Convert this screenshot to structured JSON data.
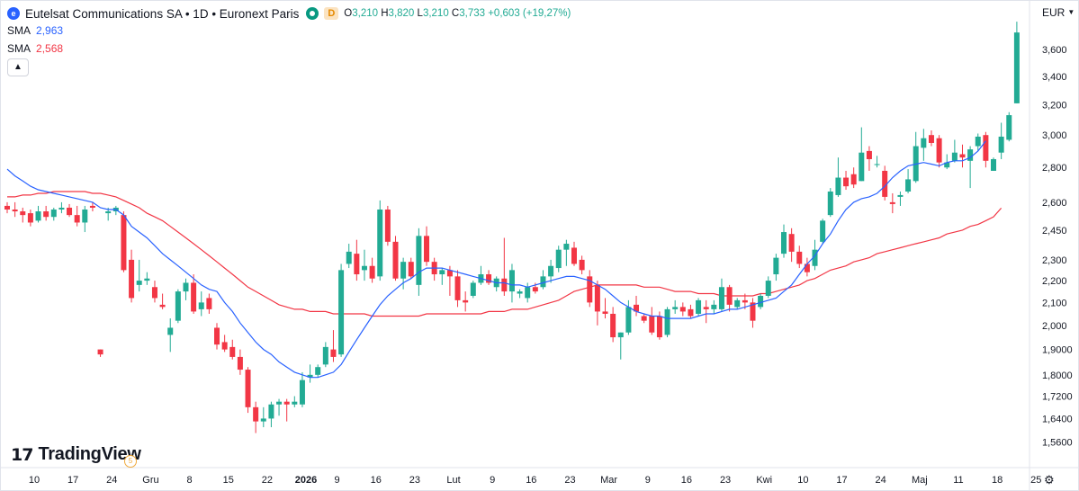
{
  "header": {
    "symbol_icon": "e",
    "title": "Eutelsat Communications SA • 1D • Euronext Paris",
    "market_status_icon": "market-open-dot-icon",
    "interval_badge": "D",
    "ohlc": {
      "o_label": "O",
      "o": "3,210",
      "h_label": "H",
      "h": "3,820",
      "l_label": "L",
      "l": "3,210",
      "c_label": "C",
      "c": "3,733",
      "change": "+0,603 (+19,27%)"
    }
  },
  "indicators": [
    {
      "label": "SMA",
      "value": "2,963",
      "color": "#2962ff"
    },
    {
      "label": "SMA",
      "value": "2,568",
      "color": "#f23645"
    }
  ],
  "collapse_icon": "chevron-up-icon",
  "currency": {
    "label": "EUR",
    "icon": "chevron-down-icon"
  },
  "settings_icon": "gear-icon",
  "logo": {
    "mark": "17",
    "text": "TradingView",
    "badge": "5"
  },
  "colors": {
    "up": "#22ab94",
    "down": "#f23645",
    "sma_fast": "#2962ff",
    "sma_slow": "#f23645"
  },
  "chart_data": {
    "type": "candlestick",
    "y_scale": "log",
    "ylim": [
      1.5,
      3.85
    ],
    "y_ticks": [
      "3,600",
      "3,400",
      "3,200",
      "3,000",
      "2,800",
      "2,600",
      "2,450",
      "2,300",
      "2,200",
      "2,100",
      "2,000",
      "1,9000",
      "1,8000",
      "1,7200",
      "1,6400",
      "1,5600"
    ],
    "y_tick_values": [
      3.6,
      3.4,
      3.2,
      3.0,
      2.8,
      2.6,
      2.45,
      2.3,
      2.2,
      2.1,
      2.0,
      1.9,
      1.8,
      1.72,
      1.64,
      1.56
    ],
    "x_ticks": [
      {
        "label": "10",
        "i": 0
      },
      {
        "label": "17",
        "i": 5
      },
      {
        "label": "24",
        "i": 10
      },
      {
        "label": "Gru",
        "i": 15
      },
      {
        "label": "8",
        "i": 20
      },
      {
        "label": "15",
        "i": 25
      },
      {
        "label": "22",
        "i": 30
      },
      {
        "label": "2026",
        "i": 35,
        "bold": true
      },
      {
        "label": "9",
        "i": 39
      },
      {
        "label": "16",
        "i": 44
      },
      {
        "label": "23",
        "i": 49
      },
      {
        "label": "Lut",
        "i": 54
      },
      {
        "label": "9",
        "i": 59
      },
      {
        "label": "16",
        "i": 64
      },
      {
        "label": "23",
        "i": 69
      },
      {
        "label": "Mar",
        "i": 74
      },
      {
        "label": "9",
        "i": 79
      },
      {
        "label": "16",
        "i": 84
      },
      {
        "label": "23",
        "i": 89
      },
      {
        "label": "Kwi",
        "i": 94
      },
      {
        "label": "10",
        "i": 99
      },
      {
        "label": "17",
        "i": 104
      },
      {
        "label": "24",
        "i": 109
      },
      {
        "label": "Maj",
        "i": 114
      },
      {
        "label": "11",
        "i": 119
      },
      {
        "label": "18",
        "i": 124
      },
      {
        "label": "25",
        "i": 129
      }
    ],
    "candles": [
      {
        "o": 2.58,
        "h": 2.6,
        "l": 2.54,
        "c": 2.56
      },
      {
        "o": 2.56,
        "h": 2.6,
        "l": 2.52,
        "c": 2.55
      },
      {
        "o": 2.55,
        "h": 2.57,
        "l": 2.49,
        "c": 2.53
      },
      {
        "o": 2.54,
        "h": 2.56,
        "l": 2.47,
        "c": 2.49
      },
      {
        "o": 2.5,
        "h": 2.58,
        "l": 2.49,
        "c": 2.55
      },
      {
        "o": 2.55,
        "h": 2.58,
        "l": 2.5,
        "c": 2.52
      },
      {
        "o": 2.52,
        "h": 2.57,
        "l": 2.5,
        "c": 2.56
      },
      {
        "o": 2.56,
        "h": 2.6,
        "l": 2.54,
        "c": 2.57
      },
      {
        "o": 2.57,
        "h": 2.59,
        "l": 2.52,
        "c": 2.53
      },
      {
        "o": 2.53,
        "h": 2.58,
        "l": 2.47,
        "c": 2.49
      },
      {
        "o": 2.49,
        "h": 2.58,
        "l": 2.44,
        "c": 2.56
      },
      {
        "o": 2.58,
        "h": 2.6,
        "l": 2.55,
        "c": 2.57
      },
      {
        "o": 1.9,
        "h": 1.9,
        "l": 1.87,
        "c": 1.88
      },
      {
        "o": 2.54,
        "h": 2.57,
        "l": 2.5,
        "c": 2.55
      },
      {
        "o": 2.55,
        "h": 2.58,
        "l": 2.53,
        "c": 2.57
      },
      {
        "o": 2.53,
        "h": 2.55,
        "l": 2.24,
        "c": 2.25
      },
      {
        "o": 2.3,
        "h": 2.35,
        "l": 2.1,
        "c": 2.12
      },
      {
        "o": 2.18,
        "h": 2.3,
        "l": 2.15,
        "c": 2.2
      },
      {
        "o": 2.2,
        "h": 2.24,
        "l": 2.18,
        "c": 2.21
      },
      {
        "o": 2.17,
        "h": 2.2,
        "l": 2.1,
        "c": 2.12
      },
      {
        "o": 2.09,
        "h": 2.14,
        "l": 2.07,
        "c": 2.08
      },
      {
        "o": 1.96,
        "h": 2.03,
        "l": 1.89,
        "c": 1.99
      },
      {
        "o": 2.02,
        "h": 2.16,
        "l": 2.01,
        "c": 2.15
      },
      {
        "o": 2.15,
        "h": 2.21,
        "l": 2.11,
        "c": 2.19
      },
      {
        "o": 2.19,
        "h": 2.23,
        "l": 2.05,
        "c": 2.06
      },
      {
        "o": 2.07,
        "h": 2.15,
        "l": 2.04,
        "c": 2.1
      },
      {
        "o": 2.12,
        "h": 2.14,
        "l": 2.05,
        "c": 2.07
      },
      {
        "o": 1.99,
        "h": 2.01,
        "l": 1.9,
        "c": 1.92
      },
      {
        "o": 1.93,
        "h": 1.96,
        "l": 1.89,
        "c": 1.9
      },
      {
        "o": 1.91,
        "h": 1.94,
        "l": 1.86,
        "c": 1.87
      },
      {
        "o": 1.87,
        "h": 1.9,
        "l": 1.8,
        "c": 1.82
      },
      {
        "o": 1.82,
        "h": 1.83,
        "l": 1.66,
        "c": 1.68
      },
      {
        "o": 1.68,
        "h": 1.7,
        "l": 1.59,
        "c": 1.63
      },
      {
        "o": 1.63,
        "h": 1.68,
        "l": 1.61,
        "c": 1.64
      },
      {
        "o": 1.64,
        "h": 1.7,
        "l": 1.61,
        "c": 1.69
      },
      {
        "o": 1.69,
        "h": 1.71,
        "l": 1.65,
        "c": 1.7
      },
      {
        "o": 1.7,
        "h": 1.71,
        "l": 1.63,
        "c": 1.69
      },
      {
        "o": 1.69,
        "h": 1.72,
        "l": 1.68,
        "c": 1.7
      },
      {
        "o": 1.69,
        "h": 1.81,
        "l": 1.68,
        "c": 1.78
      },
      {
        "o": 1.79,
        "h": 1.84,
        "l": 1.77,
        "c": 1.8
      },
      {
        "o": 1.8,
        "h": 1.84,
        "l": 1.79,
        "c": 1.83
      },
      {
        "o": 1.84,
        "h": 1.93,
        "l": 1.83,
        "c": 1.91
      },
      {
        "o": 1.9,
        "h": 1.98,
        "l": 1.85,
        "c": 1.87
      },
      {
        "o": 1.88,
        "h": 2.28,
        "l": 1.87,
        "c": 2.25
      },
      {
        "o": 2.28,
        "h": 2.38,
        "l": 2.26,
        "c": 2.34
      },
      {
        "o": 2.33,
        "h": 2.4,
        "l": 2.2,
        "c": 2.23
      },
      {
        "o": 2.25,
        "h": 2.35,
        "l": 2.2,
        "c": 2.27
      },
      {
        "o": 2.27,
        "h": 2.31,
        "l": 2.19,
        "c": 2.21
      },
      {
        "o": 2.22,
        "h": 2.61,
        "l": 2.2,
        "c": 2.56
      },
      {
        "o": 2.56,
        "h": 2.58,
        "l": 2.37,
        "c": 2.39
      },
      {
        "o": 2.39,
        "h": 2.42,
        "l": 2.2,
        "c": 2.21
      },
      {
        "o": 2.21,
        "h": 2.31,
        "l": 2.16,
        "c": 2.29
      },
      {
        "o": 2.29,
        "h": 2.31,
        "l": 2.21,
        "c": 2.22
      },
      {
        "o": 2.18,
        "h": 2.46,
        "l": 2.13,
        "c": 2.42
      },
      {
        "o": 2.42,
        "h": 2.47,
        "l": 2.27,
        "c": 2.29
      },
      {
        "o": 2.29,
        "h": 2.31,
        "l": 2.2,
        "c": 2.23
      },
      {
        "o": 2.23,
        "h": 2.26,
        "l": 2.18,
        "c": 2.25
      },
      {
        "o": 2.25,
        "h": 2.27,
        "l": 2.13,
        "c": 2.22
      },
      {
        "o": 2.22,
        "h": 2.25,
        "l": 2.08,
        "c": 2.11
      },
      {
        "o": 2.11,
        "h": 2.15,
        "l": 2.06,
        "c": 2.1
      },
      {
        "o": 2.13,
        "h": 2.2,
        "l": 2.12,
        "c": 2.19
      },
      {
        "o": 2.19,
        "h": 2.27,
        "l": 2.18,
        "c": 2.23
      },
      {
        "o": 2.23,
        "h": 2.25,
        "l": 2.18,
        "c": 2.19
      },
      {
        "o": 2.17,
        "h": 2.22,
        "l": 2.15,
        "c": 2.21
      },
      {
        "o": 2.21,
        "h": 2.41,
        "l": 2.13,
        "c": 2.15
      },
      {
        "o": 2.15,
        "h": 2.28,
        "l": 2.1,
        "c": 2.25
      },
      {
        "o": 2.14,
        "h": 2.16,
        "l": 2.12,
        "c": 2.15
      },
      {
        "o": 2.12,
        "h": 2.19,
        "l": 2.1,
        "c": 2.17
      },
      {
        "o": 2.17,
        "h": 2.19,
        "l": 2.14,
        "c": 2.15
      },
      {
        "o": 2.17,
        "h": 2.25,
        "l": 2.16,
        "c": 2.22
      },
      {
        "o": 2.22,
        "h": 2.3,
        "l": 2.19,
        "c": 2.27
      },
      {
        "o": 2.26,
        "h": 2.37,
        "l": 2.24,
        "c": 2.35
      },
      {
        "o": 2.35,
        "h": 2.4,
        "l": 2.27,
        "c": 2.38
      },
      {
        "o": 2.36,
        "h": 2.39,
        "l": 2.27,
        "c": 2.28
      },
      {
        "o": 2.3,
        "h": 2.32,
        "l": 2.23,
        "c": 2.25
      },
      {
        "o": 2.22,
        "h": 2.25,
        "l": 2.08,
        "c": 2.1
      },
      {
        "o": 2.18,
        "h": 2.2,
        "l": 2.0,
        "c": 2.06
      },
      {
        "o": 2.06,
        "h": 2.12,
        "l": 2.03,
        "c": 2.05
      },
      {
        "o": 2.05,
        "h": 2.08,
        "l": 1.93,
        "c": 1.95
      },
      {
        "o": 1.95,
        "h": 1.97,
        "l": 1.86,
        "c": 1.97
      },
      {
        "o": 1.97,
        "h": 2.11,
        "l": 1.96,
        "c": 2.08
      },
      {
        "o": 2.09,
        "h": 2.13,
        "l": 2.04,
        "c": 2.06
      },
      {
        "o": 2.04,
        "h": 2.05,
        "l": 2.01,
        "c": 2.02
      },
      {
        "o": 2.04,
        "h": 2.08,
        "l": 1.96,
        "c": 1.97
      },
      {
        "o": 2.04,
        "h": 2.06,
        "l": 1.94,
        "c": 1.95
      },
      {
        "o": 1.96,
        "h": 2.08,
        "l": 1.95,
        "c": 2.07
      },
      {
        "o": 2.07,
        "h": 2.11,
        "l": 2.05,
        "c": 2.08
      },
      {
        "o": 2.08,
        "h": 2.1,
        "l": 2.04,
        "c": 2.06
      },
      {
        "o": 2.07,
        "h": 2.09,
        "l": 2.03,
        "c": 2.04
      },
      {
        "o": 2.05,
        "h": 2.12,
        "l": 2.04,
        "c": 2.11
      },
      {
        "o": 2.08,
        "h": 2.11,
        "l": 2.01,
        "c": 2.07
      },
      {
        "o": 2.07,
        "h": 2.11,
        "l": 2.05,
        "c": 2.09
      },
      {
        "o": 2.07,
        "h": 2.21,
        "l": 2.06,
        "c": 2.17
      },
      {
        "o": 2.17,
        "h": 2.18,
        "l": 2.06,
        "c": 2.09
      },
      {
        "o": 2.08,
        "h": 2.12,
        "l": 2.07,
        "c": 2.11
      },
      {
        "o": 2.11,
        "h": 2.14,
        "l": 2.07,
        "c": 2.1
      },
      {
        "o": 2.1,
        "h": 2.12,
        "l": 1.99,
        "c": 2.02
      },
      {
        "o": 2.08,
        "h": 2.14,
        "l": 2.07,
        "c": 2.13
      },
      {
        "o": 2.13,
        "h": 2.22,
        "l": 2.12,
        "c": 2.2
      },
      {
        "o": 2.23,
        "h": 2.33,
        "l": 2.2,
        "c": 2.31
      },
      {
        "o": 2.33,
        "h": 2.48,
        "l": 2.31,
        "c": 2.44
      },
      {
        "o": 2.43,
        "h": 2.46,
        "l": 2.29,
        "c": 2.34
      },
      {
        "o": 2.34,
        "h": 2.37,
        "l": 2.26,
        "c": 2.28
      },
      {
        "o": 2.28,
        "h": 2.31,
        "l": 2.22,
        "c": 2.24
      },
      {
        "o": 2.27,
        "h": 2.4,
        "l": 2.25,
        "c": 2.35
      },
      {
        "o": 2.39,
        "h": 2.51,
        "l": 2.38,
        "c": 2.5
      },
      {
        "o": 2.53,
        "h": 2.68,
        "l": 2.52,
        "c": 2.66
      },
      {
        "o": 2.64,
        "h": 2.86,
        "l": 2.63,
        "c": 2.74
      },
      {
        "o": 2.74,
        "h": 2.78,
        "l": 2.67,
        "c": 2.69
      },
      {
        "o": 2.76,
        "h": 2.8,
        "l": 2.68,
        "c": 2.7
      },
      {
        "o": 2.72,
        "h": 3.05,
        "l": 2.72,
        "c": 2.89
      },
      {
        "o": 2.9,
        "h": 2.93,
        "l": 2.78,
        "c": 2.85
      },
      {
        "o": 2.82,
        "h": 2.87,
        "l": 2.8,
        "c": 2.82
      },
      {
        "o": 2.78,
        "h": 2.81,
        "l": 2.61,
        "c": 2.63
      },
      {
        "o": 2.6,
        "h": 2.65,
        "l": 2.54,
        "c": 2.59
      },
      {
        "o": 2.63,
        "h": 2.66,
        "l": 2.58,
        "c": 2.64
      },
      {
        "o": 2.66,
        "h": 2.79,
        "l": 2.65,
        "c": 2.73
      },
      {
        "o": 2.72,
        "h": 3.02,
        "l": 2.71,
        "c": 2.93
      },
      {
        "o": 2.92,
        "h": 3.04,
        "l": 2.84,
        "c": 2.98
      },
      {
        "o": 3.0,
        "h": 3.03,
        "l": 2.93,
        "c": 2.95
      },
      {
        "o": 2.98,
        "h": 3.0,
        "l": 2.8,
        "c": 2.83
      },
      {
        "o": 2.8,
        "h": 2.88,
        "l": 2.79,
        "c": 2.83
      },
      {
        "o": 2.84,
        "h": 2.97,
        "l": 2.83,
        "c": 2.89
      },
      {
        "o": 2.88,
        "h": 2.94,
        "l": 2.8,
        "c": 2.86
      },
      {
        "o": 2.84,
        "h": 2.93,
        "l": 2.68,
        "c": 2.91
      },
      {
        "o": 2.93,
        "h": 3.01,
        "l": 2.9,
        "c": 2.99
      },
      {
        "o": 3.0,
        "h": 3.02,
        "l": 2.8,
        "c": 2.84
      },
      {
        "o": 2.78,
        "h": 2.86,
        "l": 2.78,
        "c": 2.85
      },
      {
        "o": 2.89,
        "h": 3.08,
        "l": 2.85,
        "c": 2.99
      },
      {
        "o": 2.97,
        "h": 3.15,
        "l": 2.96,
        "c": 3.13
      },
      {
        "o": 3.21,
        "h": 3.82,
        "l": 3.21,
        "c": 3.733
      }
    ],
    "series": [
      {
        "name": "SMA",
        "color": "#2962ff",
        "values": [
          2.79,
          2.75,
          2.72,
          2.69,
          2.67,
          2.66,
          2.65,
          2.64,
          2.63,
          2.62,
          2.61,
          2.6,
          2.57,
          2.56,
          2.56,
          2.53,
          2.47,
          2.44,
          2.41,
          2.37,
          2.33,
          2.3,
          2.27,
          2.24,
          2.21,
          2.18,
          2.16,
          2.15,
          2.1,
          2.06,
          2.01,
          1.97,
          1.93,
          1.9,
          1.88,
          1.85,
          1.83,
          1.81,
          1.8,
          1.79,
          1.79,
          1.8,
          1.81,
          1.84,
          1.89,
          1.94,
          1.99,
          2.04,
          2.09,
          2.13,
          2.16,
          2.19,
          2.21,
          2.24,
          2.26,
          2.26,
          2.26,
          2.25,
          2.24,
          2.23,
          2.22,
          2.21,
          2.2,
          2.19,
          2.19,
          2.18,
          2.18,
          2.17,
          2.18,
          2.19,
          2.2,
          2.21,
          2.22,
          2.22,
          2.21,
          2.2,
          2.18,
          2.16,
          2.13,
          2.1,
          2.08,
          2.06,
          2.05,
          2.04,
          2.04,
          2.03,
          2.03,
          2.03,
          2.03,
          2.04,
          2.05,
          2.05,
          2.06,
          2.07,
          2.07,
          2.08,
          2.09,
          2.1,
          2.11,
          2.12,
          2.15,
          2.18,
          2.23,
          2.28,
          2.32,
          2.38,
          2.43,
          2.5,
          2.56,
          2.6,
          2.62,
          2.63,
          2.65,
          2.69,
          2.74,
          2.78,
          2.81,
          2.82,
          2.83,
          2.82,
          2.81,
          2.83,
          2.84,
          2.84,
          2.86,
          2.9,
          2.963
        ]
      },
      {
        "name": "SMA",
        "color": "#f23645",
        "values": [
          2.63,
          2.63,
          2.64,
          2.64,
          2.65,
          2.65,
          2.66,
          2.66,
          2.66,
          2.66,
          2.66,
          2.65,
          2.65,
          2.64,
          2.63,
          2.61,
          2.59,
          2.57,
          2.54,
          2.52,
          2.5,
          2.47,
          2.44,
          2.41,
          2.38,
          2.35,
          2.32,
          2.29,
          2.26,
          2.23,
          2.2,
          2.17,
          2.15,
          2.13,
          2.11,
          2.09,
          2.08,
          2.07,
          2.07,
          2.06,
          2.06,
          2.06,
          2.05,
          2.05,
          2.05,
          2.05,
          2.05,
          2.04,
          2.04,
          2.04,
          2.04,
          2.04,
          2.04,
          2.04,
          2.05,
          2.05,
          2.05,
          2.05,
          2.05,
          2.05,
          2.05,
          2.05,
          2.06,
          2.06,
          2.06,
          2.07,
          2.07,
          2.07,
          2.08,
          2.09,
          2.1,
          2.11,
          2.13,
          2.15,
          2.16,
          2.17,
          2.18,
          2.18,
          2.18,
          2.18,
          2.18,
          2.18,
          2.17,
          2.17,
          2.17,
          2.16,
          2.15,
          2.15,
          2.15,
          2.14,
          2.14,
          2.14,
          2.13,
          2.13,
          2.13,
          2.13,
          2.13,
          2.14,
          2.14,
          2.15,
          2.16,
          2.17,
          2.18,
          2.2,
          2.21,
          2.23,
          2.25,
          2.26,
          2.27,
          2.29,
          2.3,
          2.31,
          2.33,
          2.34,
          2.35,
          2.36,
          2.37,
          2.38,
          2.39,
          2.4,
          2.41,
          2.43,
          2.44,
          2.45,
          2.47,
          2.48,
          2.5,
          2.52,
          2.568
        ]
      }
    ]
  }
}
